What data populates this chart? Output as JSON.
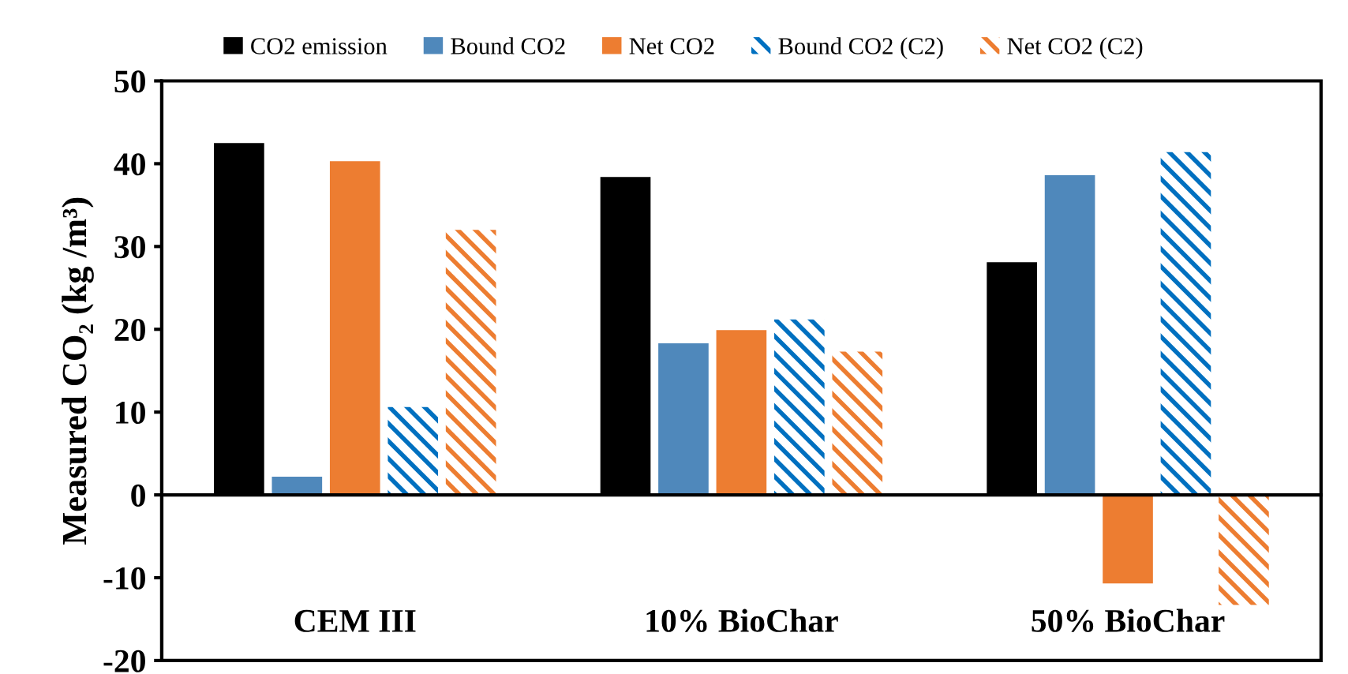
{
  "chart_data": {
    "type": "bar",
    "ylabel": "Measured CO₂ (kg /m³)",
    "categories": [
      "CEM III",
      "10% BioChar",
      "50% BioChar"
    ],
    "series": [
      {
        "name": "CO2 emission",
        "color": "#000000",
        "values": [
          42.5,
          38.4,
          28.1
        ]
      },
      {
        "name": "Bound CO2",
        "color": "#4f88bb",
        "values": [
          2.2,
          18.3,
          38.6
        ]
      },
      {
        "name": "Net CO2",
        "color": "#ed7d31",
        "values": [
          40.3,
          19.9,
          -10.7
        ]
      },
      {
        "name": "Bound CO2 (C2)",
        "color": "#0070c0",
        "values": [
          10.6,
          21.2,
          41.4
        ]
      },
      {
        "name": "Net CO2 (C2)",
        "color": "#ed7d31",
        "values": [
          32.0,
          17.3,
          -13.3
        ]
      }
    ],
    "ylim": [
      -20,
      50
    ],
    "yticks": [
      -20,
      -10,
      0,
      10,
      20,
      30,
      40,
      50
    ],
    "legend": "top"
  }
}
